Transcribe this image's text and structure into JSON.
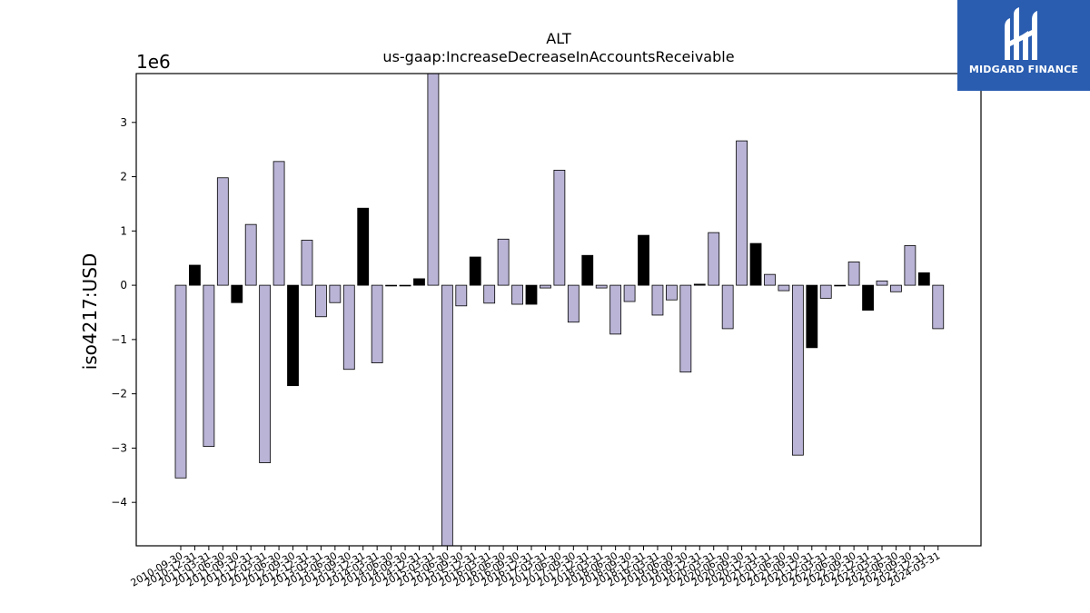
{
  "brand": {
    "name": "MIDGARD FINANCE",
    "bg_color": "#2a5db0"
  },
  "chart_data": {
    "type": "bar",
    "title": "ALT",
    "subtitle": "us-gaap:IncreaseDecreaseInAccountsReceivable",
    "ylabel": "iso4217:USD",
    "xlabel": "",
    "y_offset_label": "1e6",
    "ylim": [
      -4.8,
      3.9
    ],
    "yticks": [
      -4,
      -3,
      -2,
      -1,
      0,
      1,
      2,
      3
    ],
    "ytick_labels": [
      "−4",
      "−3",
      "−2",
      "−1",
      "0",
      "1",
      "2",
      "3"
    ],
    "grid": false,
    "colors": {
      "light": "#bab4d6",
      "dark": "#000000",
      "edge": "#000000"
    },
    "categories": [
      "2010-09-30",
      "2010-12-31",
      "2011-03-31",
      "2011-06-30",
      "2011-09-30",
      "2011-12-31",
      "2012-03-31",
      "2012-06-30",
      "2012-09-30",
      "2012-12-31",
      "2013-03-31",
      "2013-06-30",
      "2013-09-30",
      "2013-12-31",
      "2014-03-31",
      "2014-06-30",
      "2014-09-30",
      "2014-12-31",
      "2015-03-31",
      "2015-06-30",
      "2015-09-30",
      "2015-12-31",
      "2016-03-31",
      "2016-06-30",
      "2016-09-30",
      "2016-12-31",
      "2017-03-31",
      "2017-06-30",
      "2017-09-30",
      "2017-12-31",
      "2018-03-31",
      "2018-06-30",
      "2018-09-30",
      "2018-12-31",
      "2019-03-31",
      "2019-06-30",
      "2019-09-30",
      "2019-12-31",
      "2020-03-31",
      "2020-06-30",
      "2020-09-30",
      "2020-12-31",
      "2021-03-31",
      "2021-06-30",
      "2021-09-30",
      "2021-12-31",
      "2022-03-31",
      "2022-06-30",
      "2022-09-30",
      "2022-12-31",
      "2023-03-31",
      "2023-06-30",
      "2023-09-30",
      "2023-12-31",
      "2024-03-31"
    ],
    "values": [
      -3.55,
      0.37,
      -2.97,
      1.98,
      -0.32,
      1.12,
      -3.27,
      2.28,
      -1.85,
      0.83,
      -0.58,
      -0.32,
      -1.55,
      1.42,
      -1.43,
      -0.01,
      -0.01,
      0.12,
      3.9,
      -4.8,
      -0.38,
      0.52,
      -0.33,
      0.85,
      -0.35,
      -0.35,
      -0.05,
      2.12,
      -0.68,
      0.55,
      -0.05,
      -0.9,
      -0.3,
      0.92,
      -0.55,
      -0.27,
      -1.6,
      0.02,
      0.97,
      -0.8,
      2.66,
      0.77,
      0.2,
      -0.1,
      -3.13,
      -1.15,
      -0.24,
      -0.01,
      0.43,
      -0.46,
      0.08,
      -0.12,
      0.73,
      0.23,
      -0.8
    ],
    "dark_indices": [
      1,
      4,
      8,
      13,
      17,
      21,
      25,
      29,
      33,
      37,
      41,
      45,
      49,
      53
    ]
  }
}
